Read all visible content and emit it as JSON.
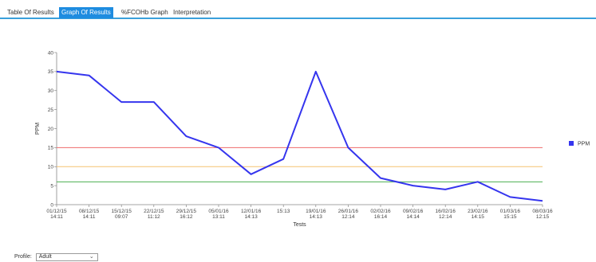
{
  "tabs": [
    {
      "label": "Table Of Results",
      "active": false
    },
    {
      "label": "Graph Of Results",
      "active": true
    },
    {
      "label": "%FCOHb Graph",
      "active": false
    },
    {
      "label": "Interpretation",
      "active": false
    }
  ],
  "profile": {
    "label": "Profile:",
    "value": "Adult"
  },
  "colors": {
    "series": "#3535ee",
    "threshold_red": "#ef6b6b",
    "threshold_orange": "#f5c270",
    "threshold_green": "#4caf50",
    "tab_active": "#1e8ce0"
  },
  "chart_data": {
    "type": "line",
    "title": "",
    "xlabel": "Tests",
    "ylabel": "PPM",
    "ylim": [
      0,
      40
    ],
    "yticks": [
      0,
      5,
      10,
      15,
      20,
      25,
      30,
      35,
      40
    ],
    "categories": [
      [
        "01/12/15",
        "14:11"
      ],
      [
        "08/12/15",
        "14:11"
      ],
      [
        "15/12/15",
        "09:07"
      ],
      [
        "22/12/15",
        "11:12"
      ],
      [
        "29/12/15",
        "16:12"
      ],
      [
        "05/01/16",
        "13:11"
      ],
      [
        "12/01/16",
        "14:13"
      ],
      [
        "15:13",
        ""
      ],
      [
        "19/01/16",
        "14:13"
      ],
      [
        "26/01/16",
        "12:14"
      ],
      [
        "02/02/16",
        "16:14"
      ],
      [
        "09/02/16",
        "14:14"
      ],
      [
        "16/02/16",
        "12:14"
      ],
      [
        "23/02/16",
        "14:15"
      ],
      [
        "01/03/16",
        "15:15"
      ],
      [
        "08/03/16",
        "12:15"
      ]
    ],
    "series": [
      {
        "name": "PPM",
        "values": [
          35,
          34,
          27,
          27,
          18,
          15,
          8,
          12,
          35,
          15,
          7,
          5,
          4,
          6,
          2,
          1
        ]
      }
    ],
    "thresholds": [
      {
        "value": 15,
        "color": "#ef6b6b"
      },
      {
        "value": 10,
        "color": "#f5c270"
      },
      {
        "value": 6,
        "color": "#4caf50"
      }
    ],
    "legend_position": "right",
    "grid": false
  }
}
